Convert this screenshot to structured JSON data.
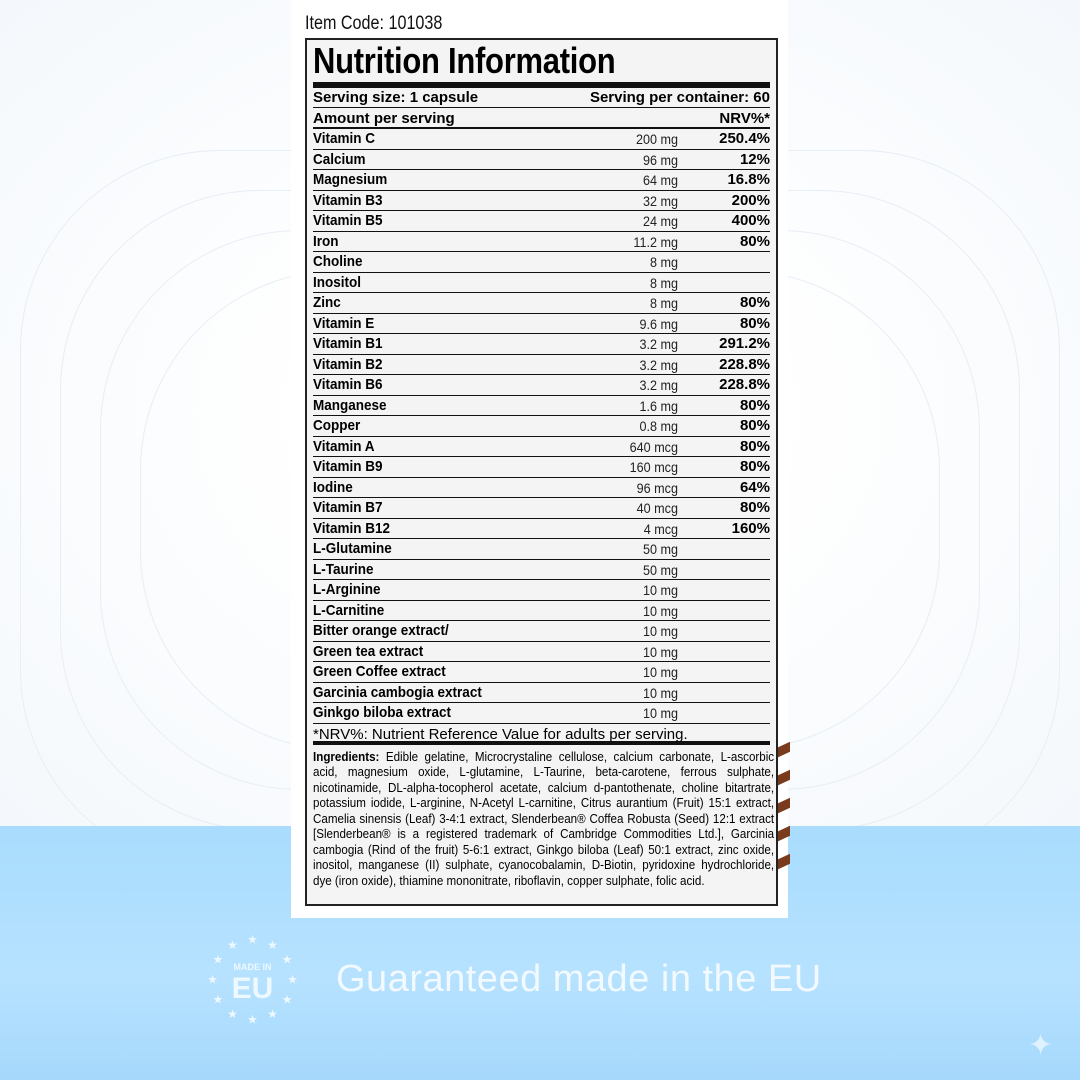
{
  "item_code": "Item Code: 101038",
  "title": "Nutrition Information",
  "serving_size": "Serving size: 1 capsule",
  "serving_per_container": "Serving per container: 60",
  "amount_header": "Amount per serving",
  "nrv_header": "NRV%*",
  "rows": [
    {
      "name": "Vitamin C",
      "amount": "200 mg",
      "nrv": "250.4%"
    },
    {
      "name": "Calcium",
      "amount": "96 mg",
      "nrv": "12%"
    },
    {
      "name": "Magnesium",
      "amount": "64 mg",
      "nrv": "16.8%"
    },
    {
      "name": "Vitamin B3",
      "amount": "32 mg",
      "nrv": "200%"
    },
    {
      "name": "Vitamin B5",
      "amount": "24 mg",
      "nrv": "400%"
    },
    {
      "name": "Iron",
      "amount": "11.2 mg",
      "nrv": "80%"
    },
    {
      "name": "Choline",
      "amount": "8 mg",
      "nrv": ""
    },
    {
      "name": "Inositol",
      "amount": "8 mg",
      "nrv": ""
    },
    {
      "name": "Zinc",
      "amount": "8 mg",
      "nrv": "80%"
    },
    {
      "name": "Vitamin E",
      "amount": "9.6 mg",
      "nrv": "80%"
    },
    {
      "name": "Vitamin B1",
      "amount": "3.2 mg",
      "nrv": "291.2%"
    },
    {
      "name": "Vitamin B2",
      "amount": "3.2 mg",
      "nrv": "228.8%"
    },
    {
      "name": "Vitamin B6",
      "amount": "3.2 mg",
      "nrv": "228.8%"
    },
    {
      "name": "Manganese",
      "amount": "1.6 mg",
      "nrv": "80%"
    },
    {
      "name": "Copper",
      "amount": "0.8 mg",
      "nrv": "80%"
    },
    {
      "name": "Vitamin A",
      "amount": "640 mcg",
      "nrv": "80%"
    },
    {
      "name": "Vitamin B9",
      "amount": "160 mcg",
      "nrv": "80%"
    },
    {
      "name": "Iodine",
      "amount": "96 mcg",
      "nrv": "64%"
    },
    {
      "name": "Vitamin B7",
      "amount": "40 mcg",
      "nrv": "80%"
    },
    {
      "name": "Vitamin B12",
      "amount": "4 mcg",
      "nrv": "160%"
    },
    {
      "name": "L-Glutamine",
      "amount": "50 mg",
      "nrv": ""
    },
    {
      "name": "L-Taurine",
      "amount": "50 mg",
      "nrv": ""
    },
    {
      "name": "L-Arginine",
      "amount": "10 mg",
      "nrv": ""
    },
    {
      "name": "L-Carnitine",
      "amount": "10 mg",
      "nrv": ""
    },
    {
      "name": "Bitter orange extract/",
      "amount": "10 mg",
      "nrv": ""
    },
    {
      "name": "Green tea extract",
      "amount": "10 mg",
      "nrv": ""
    },
    {
      "name": "Green Coffee extract",
      "amount": "10 mg",
      "nrv": ""
    },
    {
      "name": "Garcinia cambogia extract",
      "amount": "10 mg",
      "nrv": ""
    },
    {
      "name": "Ginkgo biloba extract",
      "amount": "10 mg",
      "nrv": ""
    }
  ],
  "footnote": "*NRV%: Nutrient Reference Value for adults per serving.",
  "ingredients_label": "Ingredients:",
  "ingredients_text": " Edible gelatine, Microcrystaline cellulose, calcium carbonate, L-ascorbic acid, magnesium oxide, L-glutamine, L-Taurine, beta-carotene, ferrous sulphate, nicotinamide, DL-alpha-tocopherol acetate, calcium d-pantothenate, choline bitartrate, potassium iodide, L-arginine, N-Acetyl L-carnitine, Citrus aurantium (Fruit) 15:1 extract, Camelia sinensis (Leaf) 3-4:1 extract, Slenderbean® Coffea Robusta (Seed) 12:1 extract [Slenderbean® is a registered trademark of Cambridge Commodities Ltd.], Garcinia cambogia (Rind of the fruit) 5-6:1 extract, Ginkgo biloba (Leaf) 50:1 extract, zinc oxide, inositol, manganese (II) sulphate, cyanocobalamin, D-Biotin, pyridoxine hydrochloride, dye (iron oxide), thiamine mononitrate, riboflavin, copper sulphate, folic acid.",
  "eu_badge": {
    "top": "MADE IN",
    "main": "EU"
  },
  "eu_tagline": "Guaranteed made in the EU",
  "icons": {
    "badge": "made-in-eu-stars-icon",
    "sparkle": "sparkle-icon"
  },
  "colors": {
    "banner": "#a9dcfd",
    "label_bg": "#f4f4f4",
    "stripe": "#7a3a1c"
  }
}
